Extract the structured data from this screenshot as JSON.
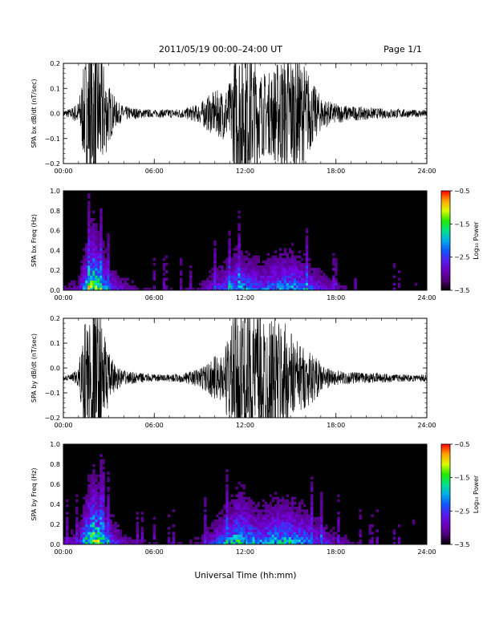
{
  "header": {
    "title": "2011/05/19  00:00–24:00 UT",
    "page": "Page 1/1"
  },
  "xlabel": "Universal Time (hh:mm)",
  "chart_data": [
    {
      "type": "line",
      "ylabel": "SPA bx dB/dt (nT/sec)",
      "xlim": [
        "00:00",
        "24:00"
      ],
      "ylim": [
        -0.2,
        0.2
      ],
      "x_ticks": [
        "00:00",
        "06:00",
        "12:00",
        "18:00",
        "24:00"
      ],
      "y_ticks": [
        "−0.2",
        "−0.1",
        "0.0",
        "0.1",
        "0.2"
      ],
      "baseline": 0.0,
      "envelope": {
        "x_hours": [
          0,
          0.5,
          1,
          1.5,
          2,
          2.5,
          3,
          3.5,
          4,
          4.5,
          5,
          6,
          7,
          8,
          8.5,
          9,
          9.5,
          10,
          10.5,
          11,
          11.5,
          12,
          12.5,
          13,
          13.5,
          14,
          14.5,
          15,
          15.5,
          16,
          16.5,
          17,
          17.5,
          18,
          19,
          20,
          21,
          22,
          23,
          24
        ],
        "amplitude": [
          0.015,
          0.02,
          0.05,
          0.25,
          0.3,
          0.25,
          0.12,
          0.05,
          0.03,
          0.025,
          0.02,
          0.015,
          0.018,
          0.02,
          0.03,
          0.04,
          0.07,
          0.09,
          0.1,
          0.13,
          0.3,
          0.3,
          0.25,
          0.18,
          0.16,
          0.2,
          0.24,
          0.25,
          0.22,
          0.2,
          0.12,
          0.07,
          0.05,
          0.04,
          0.03,
          0.025,
          0.02,
          0.02,
          0.015,
          0.015
        ]
      }
    },
    {
      "type": "heatmap",
      "ylabel": "SPA bx Freq (Hz)",
      "xlim": [
        "00:00",
        "24:00"
      ],
      "ylim": [
        0.0,
        1.0
      ],
      "x_ticks": [
        "00:00",
        "06:00",
        "12:00",
        "18:00",
        "24:00"
      ],
      "y_ticks": [
        "0.0",
        "0.2",
        "0.4",
        "0.6",
        "0.8",
        "1.0"
      ],
      "colorbar": {
        "label": "Log₁₀ Power",
        "range": [
          -3.5,
          -0.5
        ],
        "ticks": [
          "−0.5",
          "−1.5",
          "−2.5",
          "−3.5"
        ]
      },
      "activity": {
        "x_hours": [
          0,
          1,
          1.5,
          2,
          2.5,
          3,
          4,
          5,
          6,
          8,
          9,
          10,
          11,
          11.5,
          12,
          13,
          14,
          15,
          16,
          17,
          18,
          19,
          20,
          24
        ],
        "level": [
          0.15,
          0.25,
          0.7,
          0.95,
          0.7,
          0.45,
          0.25,
          0.15,
          0.1,
          0.12,
          0.18,
          0.35,
          0.5,
          0.6,
          0.55,
          0.45,
          0.55,
          0.6,
          0.5,
          0.35,
          0.2,
          0.12,
          0.05,
          0.02
        ]
      }
    },
    {
      "type": "line",
      "ylabel": "SPA by dB/dt (nT/sec)",
      "xlim": [
        "00:00",
        "24:00"
      ],
      "ylim": [
        -0.2,
        0.2
      ],
      "x_ticks": [
        "00:00",
        "06:00",
        "12:00",
        "18:00",
        "24:00"
      ],
      "y_ticks": [
        "−0.2",
        "−0.1",
        "0.0",
        "0.1",
        "0.2"
      ],
      "baseline": -0.04,
      "envelope": {
        "x_hours": [
          0,
          0.5,
          1,
          1.5,
          2,
          2.5,
          3,
          3.5,
          4,
          4.5,
          5,
          6,
          7,
          8,
          8.5,
          9,
          9.5,
          10,
          10.5,
          11,
          11.5,
          12,
          12.5,
          13,
          13.5,
          14,
          14.5,
          15,
          15.5,
          16,
          16.5,
          17,
          17.5,
          18,
          19,
          20,
          21,
          22,
          23,
          24
        ],
        "amplitude": [
          0.012,
          0.015,
          0.04,
          0.28,
          0.3,
          0.26,
          0.1,
          0.05,
          0.03,
          0.025,
          0.02,
          0.015,
          0.015,
          0.02,
          0.03,
          0.04,
          0.06,
          0.09,
          0.1,
          0.2,
          0.3,
          0.3,
          0.3,
          0.28,
          0.25,
          0.25,
          0.23,
          0.2,
          0.15,
          0.12,
          0.1,
          0.06,
          0.04,
          0.03,
          0.025,
          0.02,
          0.02,
          0.015,
          0.015,
          0.015
        ]
      }
    },
    {
      "type": "heatmap",
      "ylabel": "SPA by Freq (Hz)",
      "xlim": [
        "00:00",
        "24:00"
      ],
      "ylim": [
        0.0,
        1.0
      ],
      "x_ticks": [
        "00:00",
        "06:00",
        "12:00",
        "18:00",
        "24:00"
      ],
      "y_ticks": [
        "0.0",
        "0.2",
        "0.4",
        "0.6",
        "0.8",
        "1.0"
      ],
      "colorbar": {
        "label": "Log₁₀ Power",
        "range": [
          -3.5,
          -0.5
        ],
        "ticks": [
          "−0.5",
          "−1.5",
          "−2.5",
          "−3.5"
        ]
      },
      "activity": {
        "x_hours": [
          0,
          1,
          1.5,
          2,
          2.5,
          3,
          4,
          5,
          6,
          8,
          9,
          10,
          11,
          11.5,
          12,
          13,
          14,
          15,
          16,
          17,
          18,
          19,
          20,
          24
        ],
        "level": [
          0.2,
          0.3,
          0.75,
          0.95,
          0.75,
          0.5,
          0.25,
          0.15,
          0.1,
          0.12,
          0.2,
          0.4,
          0.6,
          0.75,
          0.7,
          0.55,
          0.65,
          0.65,
          0.55,
          0.4,
          0.25,
          0.15,
          0.08,
          0.03
        ]
      }
    }
  ]
}
